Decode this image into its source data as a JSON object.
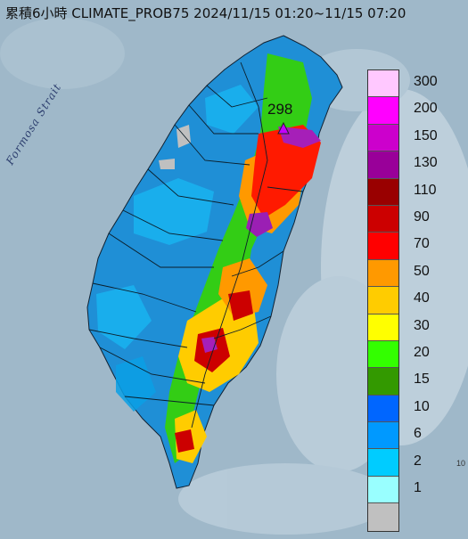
{
  "title": "累積6小時 CLIMATE_PROB75 2024/11/15 01:20~11/15 07:20",
  "strait_label": "Formosa Strait",
  "max_marker": {
    "value": "298"
  },
  "edge_label": "10",
  "legend": {
    "items": [
      {
        "label": "300",
        "color": "#ffc8ff"
      },
      {
        "label": "200",
        "color": "#ff00ff"
      },
      {
        "label": "150",
        "color": "#cc00cc"
      },
      {
        "label": "130",
        "color": "#990099"
      },
      {
        "label": "110",
        "color": "#990000"
      },
      {
        "label": "90",
        "color": "#cc0000"
      },
      {
        "label": "70",
        "color": "#ff0000"
      },
      {
        "label": "50",
        "color": "#ff9900"
      },
      {
        "label": "40",
        "color": "#ffcc00"
      },
      {
        "label": "30",
        "color": "#ffff00"
      },
      {
        "label": "20",
        "color": "#33ff00"
      },
      {
        "label": "15",
        "color": "#339900"
      },
      {
        "label": "10",
        "color": "#0066ff"
      },
      {
        "label": "6",
        "color": "#0099ff"
      },
      {
        "label": "2",
        "color": "#00ccff"
      },
      {
        "label": "1",
        "color": "#99ffff"
      },
      {
        "label": "",
        "color": "#c0c0c0"
      }
    ]
  },
  "colors": {
    "sea": "#9fb8c9",
    "cloud": "#d9e4ec",
    "rain_light": "#1f9bdc",
    "rain_mid": "#33d100",
    "rain_heavy": "#ff1a00",
    "rain_extreme": "#9b1fb4"
  }
}
